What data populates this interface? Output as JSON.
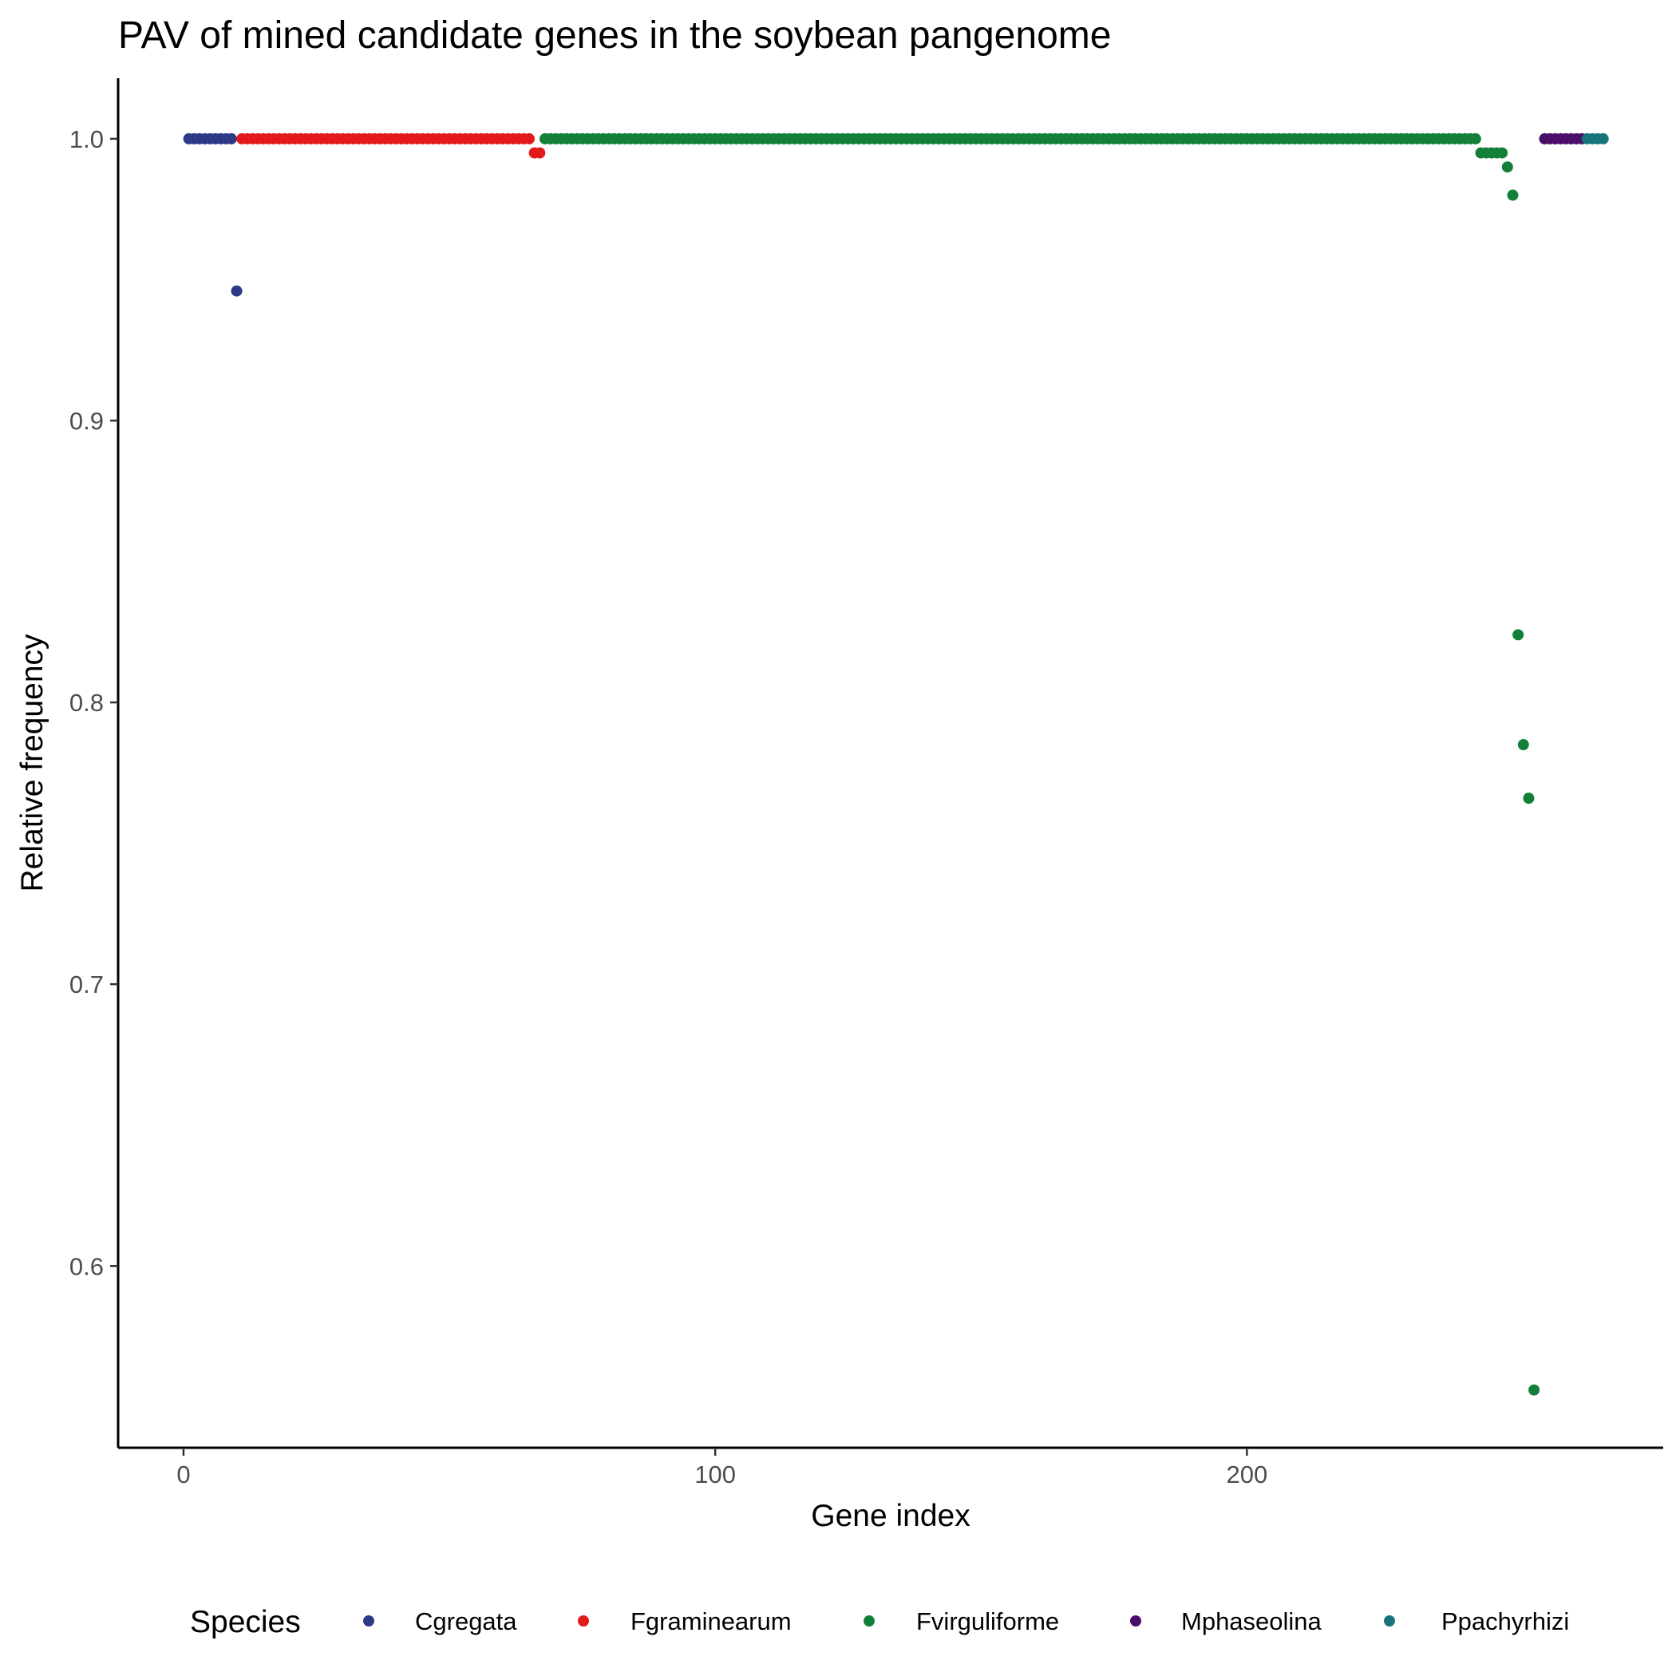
{
  "chart_data": {
    "type": "scatter",
    "title": "PAV of mined candidate genes in the soybean pangenome",
    "xlabel": "Gene index",
    "ylabel": "Relative frequency",
    "xlim": [
      -12.3,
      278.3
    ],
    "ylim": [
      0.5355,
      1.0215
    ],
    "xticks": [
      0,
      100,
      200
    ],
    "yticks": [
      0.6,
      0.7,
      0.8,
      0.9,
      1.0
    ],
    "xtick_labels": [
      "0",
      "100",
      "200"
    ],
    "ytick_labels": [
      "0.6",
      "0.7",
      "0.8",
      "0.9",
      "1.0"
    ],
    "grid": false,
    "legend": {
      "title": "Species",
      "position": "bottom"
    },
    "series": [
      {
        "name": "Cgregata",
        "color": "#2E3A87",
        "points": [
          [
            1,
            1
          ],
          [
            2,
            1
          ],
          [
            3,
            1
          ],
          [
            4,
            1
          ],
          [
            5,
            1
          ],
          [
            6,
            1
          ],
          [
            7,
            1
          ],
          [
            8,
            1
          ],
          [
            9,
            1
          ],
          [
            10,
            0.946
          ]
        ]
      },
      {
        "name": "Fgraminearum",
        "color": "#E31A1C",
        "points": [
          [
            11,
            1
          ],
          [
            12,
            1
          ],
          [
            13,
            1
          ],
          [
            14,
            1
          ],
          [
            15,
            1
          ],
          [
            16,
            1
          ],
          [
            17,
            1
          ],
          [
            18,
            1
          ],
          [
            19,
            1
          ],
          [
            20,
            1
          ],
          [
            21,
            1
          ],
          [
            22,
            1
          ],
          [
            23,
            1
          ],
          [
            24,
            1
          ],
          [
            25,
            1
          ],
          [
            26,
            1
          ],
          [
            27,
            1
          ],
          [
            28,
            1
          ],
          [
            29,
            1
          ],
          [
            30,
            1
          ],
          [
            31,
            1
          ],
          [
            32,
            1
          ],
          [
            33,
            1
          ],
          [
            34,
            1
          ],
          [
            35,
            1
          ],
          [
            36,
            1
          ],
          [
            37,
            1
          ],
          [
            38,
            1
          ],
          [
            39,
            1
          ],
          [
            40,
            1
          ],
          [
            41,
            1
          ],
          [
            42,
            1
          ],
          [
            43,
            1
          ],
          [
            44,
            1
          ],
          [
            45,
            1
          ],
          [
            46,
            1
          ],
          [
            47,
            1
          ],
          [
            48,
            1
          ],
          [
            49,
            1
          ],
          [
            50,
            1
          ],
          [
            51,
            1
          ],
          [
            52,
            1
          ],
          [
            53,
            1
          ],
          [
            54,
            1
          ],
          [
            55,
            1
          ],
          [
            56,
            1
          ],
          [
            57,
            1
          ],
          [
            58,
            1
          ],
          [
            59,
            1
          ],
          [
            60,
            1
          ],
          [
            61,
            1
          ],
          [
            62,
            1
          ],
          [
            63,
            1
          ],
          [
            64,
            1
          ],
          [
            65,
            1
          ],
          [
            66,
            0.995
          ],
          [
            67,
            0.995
          ]
        ]
      },
      {
        "name": "Fvirguliforme",
        "color": "#13803A",
        "points": [
          [
            68,
            1
          ],
          [
            69,
            1
          ],
          [
            70,
            1
          ],
          [
            71,
            1
          ],
          [
            72,
            1
          ],
          [
            73,
            1
          ],
          [
            74,
            1
          ],
          [
            75,
            1
          ],
          [
            76,
            1
          ],
          [
            77,
            1
          ],
          [
            78,
            1
          ],
          [
            79,
            1
          ],
          [
            80,
            1
          ],
          [
            81,
            1
          ],
          [
            82,
            1
          ],
          [
            83,
            1
          ],
          [
            84,
            1
          ],
          [
            85,
            1
          ],
          [
            86,
            1
          ],
          [
            87,
            1
          ],
          [
            88,
            1
          ],
          [
            89,
            1
          ],
          [
            90,
            1
          ],
          [
            91,
            1
          ],
          [
            92,
            1
          ],
          [
            93,
            1
          ],
          [
            94,
            1
          ],
          [
            95,
            1
          ],
          [
            96,
            1
          ],
          [
            97,
            1
          ],
          [
            98,
            1
          ],
          [
            99,
            1
          ],
          [
            100,
            1
          ],
          [
            101,
            1
          ],
          [
            102,
            1
          ],
          [
            103,
            1
          ],
          [
            104,
            1
          ],
          [
            105,
            1
          ],
          [
            106,
            1
          ],
          [
            107,
            1
          ],
          [
            108,
            1
          ],
          [
            109,
            1
          ],
          [
            110,
            1
          ],
          [
            111,
            1
          ],
          [
            112,
            1
          ],
          [
            113,
            1
          ],
          [
            114,
            1
          ],
          [
            115,
            1
          ],
          [
            116,
            1
          ],
          [
            117,
            1
          ],
          [
            118,
            1
          ],
          [
            119,
            1
          ],
          [
            120,
            1
          ],
          [
            121,
            1
          ],
          [
            122,
            1
          ],
          [
            123,
            1
          ],
          [
            124,
            1
          ],
          [
            125,
            1
          ],
          [
            126,
            1
          ],
          [
            127,
            1
          ],
          [
            128,
            1
          ],
          [
            129,
            1
          ],
          [
            130,
            1
          ],
          [
            131,
            1
          ],
          [
            132,
            1
          ],
          [
            133,
            1
          ],
          [
            134,
            1
          ],
          [
            135,
            1
          ],
          [
            136,
            1
          ],
          [
            137,
            1
          ],
          [
            138,
            1
          ],
          [
            139,
            1
          ],
          [
            140,
            1
          ],
          [
            141,
            1
          ],
          [
            142,
            1
          ],
          [
            143,
            1
          ],
          [
            144,
            1
          ],
          [
            145,
            1
          ],
          [
            146,
            1
          ],
          [
            147,
            1
          ],
          [
            148,
            1
          ],
          [
            149,
            1
          ],
          [
            150,
            1
          ],
          [
            151,
            1
          ],
          [
            152,
            1
          ],
          [
            153,
            1
          ],
          [
            154,
            1
          ],
          [
            155,
            1
          ],
          [
            156,
            1
          ],
          [
            157,
            1
          ],
          [
            158,
            1
          ],
          [
            159,
            1
          ],
          [
            160,
            1
          ],
          [
            161,
            1
          ],
          [
            162,
            1
          ],
          [
            163,
            1
          ],
          [
            164,
            1
          ],
          [
            165,
            1
          ],
          [
            166,
            1
          ],
          [
            167,
            1
          ],
          [
            168,
            1
          ],
          [
            169,
            1
          ],
          [
            170,
            1
          ],
          [
            171,
            1
          ],
          [
            172,
            1
          ],
          [
            173,
            1
          ],
          [
            174,
            1
          ],
          [
            175,
            1
          ],
          [
            176,
            1
          ],
          [
            177,
            1
          ],
          [
            178,
            1
          ],
          [
            179,
            1
          ],
          [
            180,
            1
          ],
          [
            181,
            1
          ],
          [
            182,
            1
          ],
          [
            183,
            1
          ],
          [
            184,
            1
          ],
          [
            185,
            1
          ],
          [
            186,
            1
          ],
          [
            187,
            1
          ],
          [
            188,
            1
          ],
          [
            189,
            1
          ],
          [
            190,
            1
          ],
          [
            191,
            1
          ],
          [
            192,
            1
          ],
          [
            193,
            1
          ],
          [
            194,
            1
          ],
          [
            195,
            1
          ],
          [
            196,
            1
          ],
          [
            197,
            1
          ],
          [
            198,
            1
          ],
          [
            199,
            1
          ],
          [
            200,
            1
          ],
          [
            201,
            1
          ],
          [
            202,
            1
          ],
          [
            203,
            1
          ],
          [
            204,
            1
          ],
          [
            205,
            1
          ],
          [
            206,
            1
          ],
          [
            207,
            1
          ],
          [
            208,
            1
          ],
          [
            209,
            1
          ],
          [
            210,
            1
          ],
          [
            211,
            1
          ],
          [
            212,
            1
          ],
          [
            213,
            1
          ],
          [
            214,
            1
          ],
          [
            215,
            1
          ],
          [
            216,
            1
          ],
          [
            217,
            1
          ],
          [
            218,
            1
          ],
          [
            219,
            1
          ],
          [
            220,
            1
          ],
          [
            221,
            1
          ],
          [
            222,
            1
          ],
          [
            223,
            1
          ],
          [
            224,
            1
          ],
          [
            225,
            1
          ],
          [
            226,
            1
          ],
          [
            227,
            1
          ],
          [
            228,
            1
          ],
          [
            229,
            1
          ],
          [
            230,
            1
          ],
          [
            231,
            1
          ],
          [
            232,
            1
          ],
          [
            233,
            1
          ],
          [
            234,
            1
          ],
          [
            235,
            1
          ],
          [
            236,
            1
          ],
          [
            237,
            1
          ],
          [
            238,
            1
          ],
          [
            239,
            1
          ],
          [
            240,
            1
          ],
          [
            241,
            1
          ],
          [
            242,
            1
          ],
          [
            243,
            1
          ],
          [
            244,
            0.995
          ],
          [
            245,
            0.995
          ],
          [
            246,
            0.995
          ],
          [
            247,
            0.995
          ],
          [
            248,
            0.995
          ],
          [
            249,
            0.99
          ],
          [
            250,
            0.98
          ],
          [
            251,
            0.824
          ],
          [
            252,
            0.785
          ],
          [
            253,
            0.766
          ],
          [
            254,
            0.556
          ]
        ]
      },
      {
        "name": "Mphaseolina",
        "color": "#4B0F6B",
        "points": [
          [
            256,
            1
          ],
          [
            257,
            1
          ],
          [
            258,
            1
          ],
          [
            259,
            1
          ],
          [
            260,
            1
          ],
          [
            261,
            1
          ],
          [
            262,
            1
          ],
          [
            263,
            1
          ]
        ]
      },
      {
        "name": "Ppachyrhizi",
        "color": "#17747C",
        "points": [
          [
            264,
            1
          ],
          [
            265,
            1
          ],
          [
            266,
            1
          ],
          [
            267,
            1
          ]
        ]
      }
    ]
  }
}
